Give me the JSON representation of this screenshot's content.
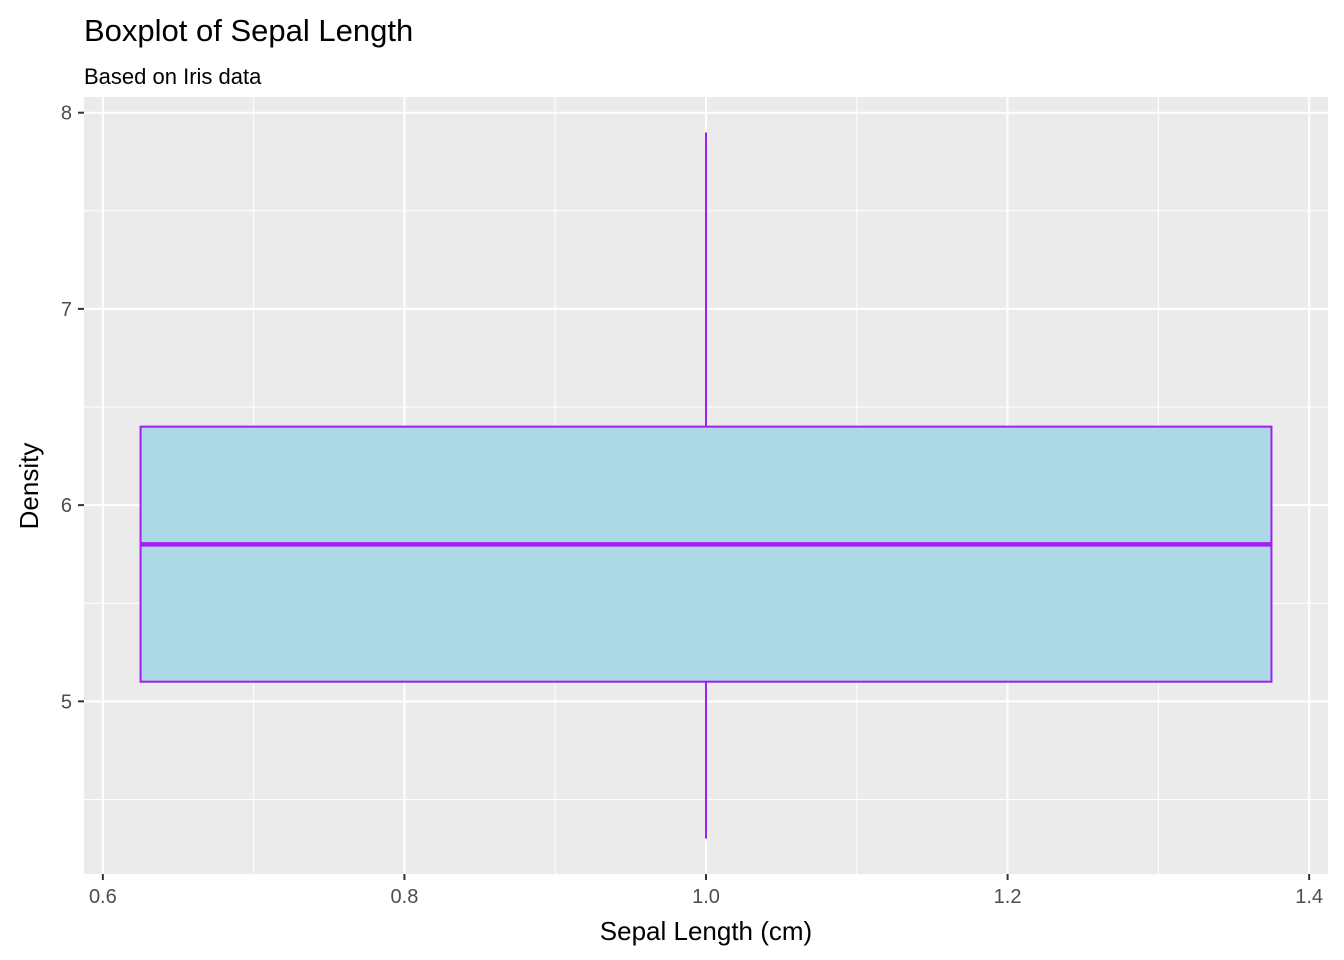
{
  "chart_data": {
    "type": "boxplot",
    "title": "Boxplot of Sepal Length",
    "subtitle": "Based on Iris data",
    "xlabel": "Sepal Length (cm)",
    "ylabel": "Density",
    "xlim": [
      0.5875,
      1.4125
    ],
    "ylim": [
      4.12,
      8.08
    ],
    "x_ticks": [
      0.6,
      0.8,
      1.0,
      1.2,
      1.4
    ],
    "x_tick_labels": [
      "0.6",
      "0.8",
      "1.0",
      "1.2",
      "1.4"
    ],
    "y_ticks": [
      5,
      6,
      7,
      8
    ],
    "y_tick_labels": [
      "5",
      "6",
      "7",
      "8"
    ],
    "x_minor": [
      0.7,
      0.9,
      1.1,
      1.3
    ],
    "y_minor": [
      4.5,
      5.5,
      6.5,
      7.5
    ],
    "box": {
      "x": 1.0,
      "xmin": 0.625,
      "xmax": 1.375,
      "ymin": 4.3,
      "q1": 5.1,
      "median": 5.8,
      "q3": 6.4,
      "ymax": 7.9
    },
    "grid": true,
    "colors": {
      "panel": "#ebebeb",
      "grid": "#ffffff",
      "box_fill": "#add8e6",
      "box_outline": "#a020f0"
    }
  }
}
